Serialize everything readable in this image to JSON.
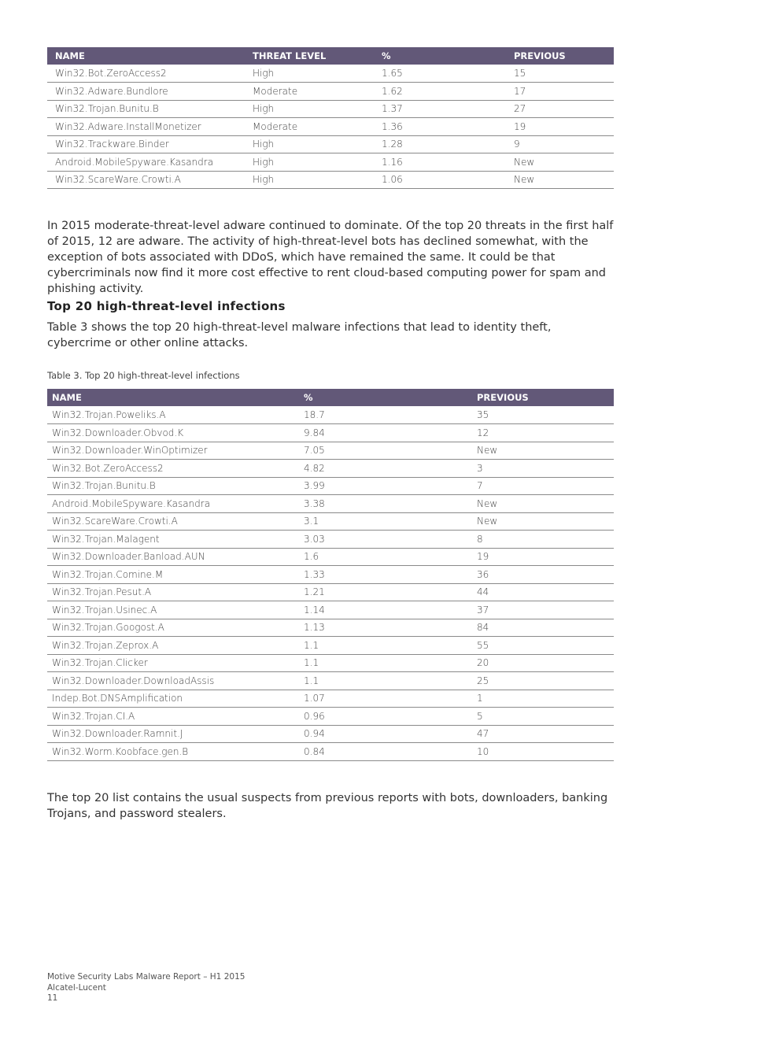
{
  "table1": {
    "headers": [
      "NAME",
      "THREAT LEVEL",
      "%",
      "PREVIOUS"
    ],
    "rows": [
      [
        "Win32.Bot.ZeroAccess2",
        "High",
        "1.65",
        "15"
      ],
      [
        "Win32.Adware.Bundlore",
        "Moderate",
        "1.62",
        "17"
      ],
      [
        "Win32.Trojan.Bunitu.B",
        "High",
        "1.37",
        "27"
      ],
      [
        "Win32.Adware.InstallMonetizer",
        "Moderate",
        "1.36",
        "19"
      ],
      [
        "Win32.Trackware.Binder",
        "High",
        "1.28",
        "9"
      ],
      [
        "Android.MobileSpyware.Kasandra",
        "High",
        "1.16",
        "New"
      ],
      [
        "Win32.ScareWare.Crowti.A",
        "High",
        "1.06",
        "New"
      ]
    ]
  },
  "para1": "In 2015 moderate-threat-level adware continued to dominate. Of the top 20 threats in the first half of 2015, 12 are adware. The activity of high-threat-level bots has declined somewhat, with the exception of bots associated with DDoS, which have remained the same. It could be that cybercriminals now find it more cost effective to rent cloud-based computing power for spam and phishing activity.",
  "heading": "Top 20 high-threat-level infections",
  "para2": "Table 3 shows the top 20 high-threat-level malware infections that lead to identity theft, cybercrime or other online attacks.",
  "caption": "Table 3. Top 20 high-threat-level infections",
  "table3": {
    "headers": [
      "NAME",
      "%",
      "PREVIOUS"
    ],
    "rows": [
      [
        "Win32.Trojan.Poweliks.A",
        "18.7",
        "35"
      ],
      [
        "Win32.Downloader.Obvod.K",
        "9.84",
        "12"
      ],
      [
        "Win32.Downloader.WinOptimizer",
        "7.05",
        "New"
      ],
      [
        "Win32.Bot.ZeroAccess2",
        "4.82",
        "3"
      ],
      [
        "Win32.Trojan.Bunitu.B",
        "3.99",
        "7"
      ],
      [
        "Android.MobileSpyware.Kasandra",
        "3.38",
        "New"
      ],
      [
        "Win32.ScareWare.Crowti.A",
        "3.1",
        "New"
      ],
      [
        "Win32.Trojan.Malagent",
        "3.03",
        "8"
      ],
      [
        "Win32.Downloader.Banload.AUN",
        "1.6",
        "19"
      ],
      [
        "Win32.Trojan.Comine.M",
        "1.33",
        "36"
      ],
      [
        "Win32.Trojan.Pesut.A",
        "1.21",
        "44"
      ],
      [
        "Win32.Trojan.Usinec.A",
        "1.14",
        "37"
      ],
      [
        "Win32.Trojan.Googost.A",
        "1.13",
        "84"
      ],
      [
        "Win32.Trojan.Zeprox.A",
        "1.1",
        "55"
      ],
      [
        "Win32.Trojan.Clicker",
        "1.1",
        "20"
      ],
      [
        "Win32.Downloader.DownloadAssis",
        "1.1",
        "25"
      ],
      [
        "Indep.Bot.DNSAmplification",
        "1.07",
        "1"
      ],
      [
        "Win32.Trojan.CI.A",
        "0.96",
        "5"
      ],
      [
        "Win32.Downloader.Ramnit.J",
        "0.94",
        "47"
      ],
      [
        "Win32.Worm.Koobface.gen.B",
        "0.84",
        "10"
      ]
    ]
  },
  "para3": "The top 20 list contains the usual suspects from previous reports with bots, downloaders, banking Trojans, and password stealers.",
  "footer": {
    "line1": "Motive Security Labs Malware Report – H1 2015",
    "line2": "Alcatel-Lucent",
    "page": "11"
  },
  "colors": {
    "header_bg": "#625878"
  }
}
